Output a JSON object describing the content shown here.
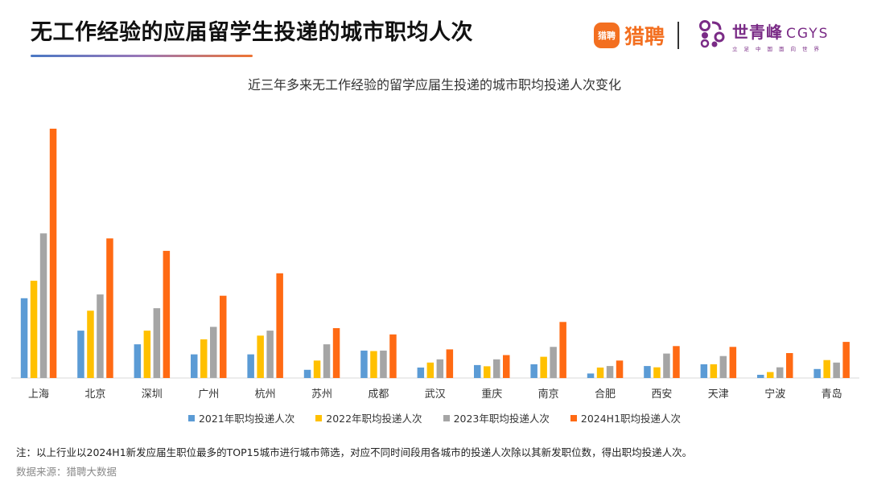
{
  "header": {
    "title": "无工作经验的应届留学生投递的城市职均人次",
    "logo_liepin_mark": "猎聘",
    "logo_liepin_text": "猎聘",
    "logo_cgys_cn": "世青峰",
    "logo_cgys_en": "CGYS",
    "logo_cgys_slogan": "立足中国面向世界"
  },
  "colors": {
    "series_2021": "#5b9bd5",
    "series_2022": "#ffc000",
    "series_2023": "#a5a5a5",
    "series_2024h1": "#ff6a13",
    "underline_start": "#4a78c4",
    "underline_end": "#ee7433",
    "liepin_orange": "#f36f20",
    "cgys_purple": "#7a2b86"
  },
  "chart_data": {
    "type": "bar",
    "title": "近三年多来无工作经验的留学应届生投递的城市职均投递人次变化",
    "xlabel": "",
    "ylabel": "",
    "y_axis_shown": false,
    "grid": false,
    "legend_position": "bottom",
    "ylim": [
      0,
      100
    ],
    "categories": [
      "上海",
      "北京",
      "深圳",
      "广州",
      "杭州",
      "苏州",
      "成都",
      "武汉",
      "重庆",
      "南京",
      "合肥",
      "西安",
      "天津",
      "宁波",
      "青岛"
    ],
    "series": [
      {
        "name": "2021年职均投递人次",
        "color": "#5b9bd5",
        "values": [
          32,
          19,
          13.5,
          9.5,
          9.5,
          3.3,
          11,
          4.2,
          5.2,
          5.5,
          1.8,
          4.8,
          5.5,
          1.3,
          3.6
        ]
      },
      {
        "name": "2022年职均投递人次",
        "color": "#ffc000",
        "values": [
          39,
          27,
          19,
          15.5,
          17,
          7,
          10.8,
          6.2,
          4.7,
          8.5,
          4.2,
          4.3,
          5.5,
          2.4,
          7.2
        ]
      },
      {
        "name": "2023年职均投递人次",
        "color": "#a5a5a5",
        "values": [
          58,
          33.5,
          28,
          20.5,
          19,
          13.5,
          11,
          7.5,
          7.5,
          12.5,
          4.8,
          9.8,
          8.8,
          4.3,
          6.2
        ]
      },
      {
        "name": "2024H1职均投递人次",
        "color": "#ff6a13",
        "values": [
          100,
          56,
          51,
          33,
          42,
          20,
          17.5,
          11.5,
          9.2,
          22.5,
          7,
          12.8,
          12.5,
          10,
          14.5
        ]
      }
    ]
  },
  "footer": {
    "note": "注：以上行业以2024H1新发应届生职位最多的TOP15城市进行城市筛选，对应不同时间段用各城市的投递人次除以其新发职位数，得出职均投递人次。",
    "source": "数据来源：猎聘大数据"
  }
}
